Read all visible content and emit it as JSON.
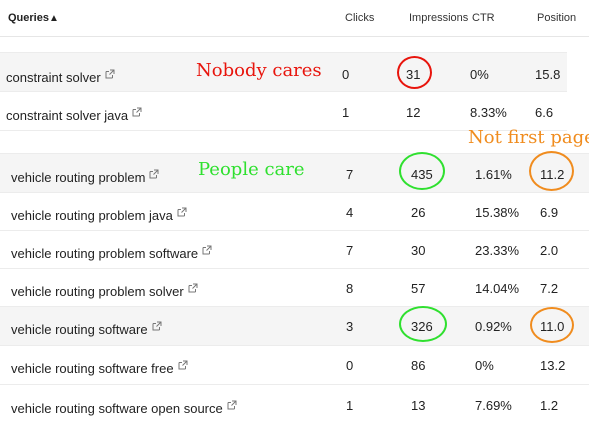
{
  "table": {
    "headers": {
      "queries": "Queries",
      "sort_indicator": "▲",
      "clicks": "Clicks",
      "impressions": "Impressions",
      "ctr": "CTR",
      "position": "Position"
    },
    "group1": [
      {
        "query": "constraint solver",
        "clicks": "0",
        "impressions": "31",
        "ctr": "0%",
        "position": "15.8"
      },
      {
        "query": "constraint solver java",
        "clicks": "1",
        "impressions": "12",
        "ctr": "8.33%",
        "position": "6.6"
      }
    ],
    "group2": [
      {
        "query": "vehicle routing problem",
        "clicks": "7",
        "impressions": "435",
        "ctr": "1.61%",
        "position": "11.2"
      },
      {
        "query": "vehicle routing problem java",
        "clicks": "4",
        "impressions": "26",
        "ctr": "15.38%",
        "position": "6.9"
      },
      {
        "query": "vehicle routing problem software",
        "clicks": "7",
        "impressions": "30",
        "ctr": "23.33%",
        "position": "2.0"
      },
      {
        "query": "vehicle routing problem solver",
        "clicks": "8",
        "impressions": "57",
        "ctr": "14.04%",
        "position": "7.2"
      },
      {
        "query": "vehicle routing software",
        "clicks": "3",
        "impressions": "326",
        "ctr": "0.92%",
        "position": "11.0"
      },
      {
        "query": "vehicle routing software free",
        "clicks": "0",
        "impressions": "86",
        "ctr": "0%",
        "position": "13.2"
      },
      {
        "query": "vehicle routing software open source",
        "clicks": "1",
        "impressions": "13",
        "ctr": "7.69%",
        "position": "1.2"
      }
    ]
  },
  "annotations": {
    "nobody_cares": "Nobody cares",
    "people_care": "People care",
    "not_first_page": "Not first page"
  },
  "icons": {
    "external_link": "external-link-icon"
  },
  "colors": {
    "red": "#e8140c",
    "green": "#2fe02f",
    "orange": "#f08c1e",
    "row_shade": "#f5f5f5"
  }
}
